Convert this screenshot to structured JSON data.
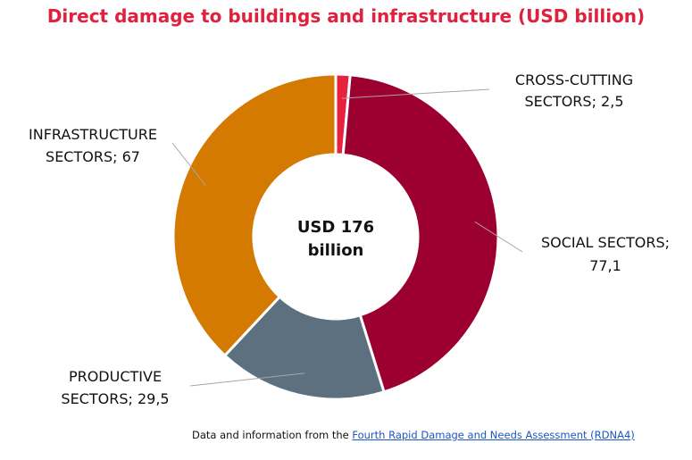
{
  "chart_data": {
    "type": "pie",
    "donut": true,
    "title": "Direct damage to buildings and infrastructure (USD billion)",
    "center_label": [
      "USD 176",
      "billion"
    ],
    "legend": "none",
    "slices": [
      {
        "label_lines": [
          "CROSS-CUTTING",
          "SECTORS; 2,5"
        ],
        "value": 2.5,
        "color": "#e8223e"
      },
      {
        "label_lines": [
          "SOCIAL SECTORS;",
          "77,1"
        ],
        "value": 77.1,
        "color": "#9b0030"
      },
      {
        "label_lines": [
          "PRODUCTIVE",
          "SECTORS; 29,5"
        ],
        "value": 29.5,
        "color": "#5d7080"
      },
      {
        "label_lines": [
          "INFRASTRUCTURE",
          "SECTORS; 67"
        ],
        "value": 67,
        "color": "#d47a00"
      }
    ]
  },
  "source": {
    "prefix": "Data and information from the ",
    "link_text": "Fourth Rapid Damage and Needs Assessment (RDNA4)"
  }
}
